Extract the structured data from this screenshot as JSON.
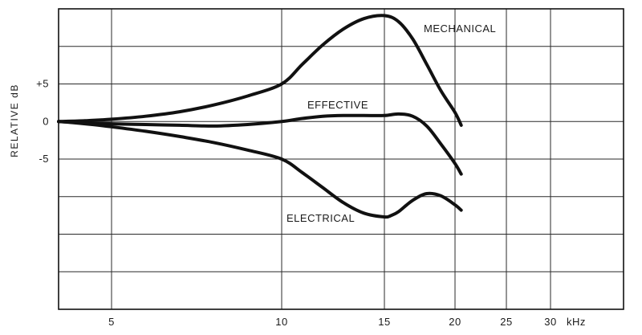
{
  "chart_data": {
    "type": "line",
    "xlabel": "",
    "ylabel": "RELATIVE dB",
    "x_unit": "kHz",
    "xlim": [
      3,
      33
    ],
    "ylim": [
      -25,
      15
    ],
    "x_ticks": [
      {
        "value": 5,
        "label": "5"
      },
      {
        "value": 10,
        "label": "10"
      },
      {
        "value": 15,
        "label": "15"
      },
      {
        "value": 20,
        "label": "20"
      },
      {
        "value": 25,
        "label": "25"
      },
      {
        "value": 30,
        "label": "30"
      }
    ],
    "y_ticks": [
      {
        "value": 5,
        "label": "+5"
      },
      {
        "value": 0,
        "label": "0"
      },
      {
        "value": -5,
        "label": "-5"
      }
    ],
    "y_grid": [
      15,
      10,
      5,
      0,
      -5,
      -10,
      -15,
      -20,
      -25
    ],
    "grid": true,
    "series": [
      {
        "name": "MECHANICAL",
        "x": [
          3,
          4,
          5,
          6,
          7,
          8,
          9,
          10,
          11,
          12,
          13,
          14,
          15,
          16,
          17,
          18,
          19,
          20,
          20.6
        ],
        "values": [
          0,
          0.1,
          0.3,
          0.7,
          1.3,
          2.2,
          3.4,
          5,
          7.6,
          10.2,
          12.3,
          13.7,
          14.1,
          13.3,
          11,
          7.6,
          4.1,
          1.2,
          -0.5
        ]
      },
      {
        "name": "EFFECTIVE",
        "x": [
          3,
          4,
          5,
          6,
          7,
          8,
          9,
          10,
          11,
          12,
          13,
          14,
          15,
          16,
          17,
          18,
          19,
          20,
          20.6
        ],
        "values": [
          0,
          -0.2,
          -0.3,
          -0.4,
          -0.5,
          -0.6,
          -0.4,
          0,
          0.4,
          0.7,
          0.8,
          0.8,
          0.8,
          1,
          0.7,
          -0.6,
          -3,
          -5.6,
          -7
        ]
      },
      {
        "name": "ELECTRICAL",
        "x": [
          3,
          4,
          5,
          6,
          7,
          8,
          9,
          10,
          11,
          12,
          13,
          14,
          15,
          15.5,
          16,
          17,
          18,
          19,
          20,
          20.6
        ],
        "values": [
          0,
          -0.3,
          -0.7,
          -1.3,
          -2,
          -2.8,
          -3.8,
          -5,
          -6.8,
          -8.8,
          -10.8,
          -12.2,
          -12.7,
          -12.5,
          -12,
          -10.5,
          -9.6,
          -9.9,
          -11.1,
          -11.8
        ]
      }
    ]
  }
}
